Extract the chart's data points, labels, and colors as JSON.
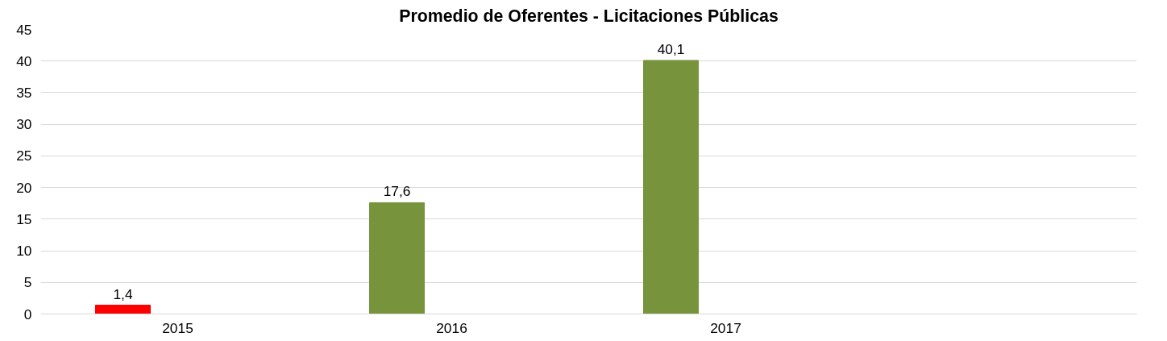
{
  "chart_data": {
    "type": "bar",
    "title": "Promedio de Oferentes - Licitaciones Públicas",
    "categories": [
      "2015",
      "2016",
      "2017",
      null
    ],
    "values": [
      1.4,
      17.6,
      40.1,
      null
    ],
    "colors": [
      "#ff0000",
      "#77933c",
      "#77933c",
      "#77933c"
    ],
    "value_labels": [
      "1,4",
      "17,6",
      "40,1",
      null
    ],
    "ylim": [
      0,
      45
    ],
    "yticks": [
      0,
      5,
      10,
      15,
      20,
      25,
      30,
      35,
      40,
      45
    ],
    "grid": "y"
  }
}
